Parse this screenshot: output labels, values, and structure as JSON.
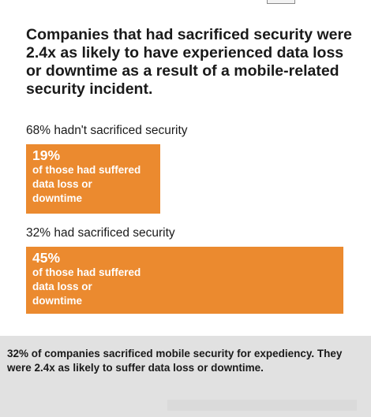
{
  "headline": "Companies that had sacrificed security were 2.4x as likely to have experienced data loss or downtime as a result of a mobile-related security incident.",
  "chart_data": {
    "type": "bar",
    "orientation": "horizontal",
    "title": "Companies that had sacrificed security were 2.4x as likely to have experienced data loss or downtime as a result of a mobile-related security incident.",
    "categories": [
      "68% hadn't sacrificed security",
      "32% had sacrificed security"
    ],
    "values": [
      19,
      45
    ],
    "unit": "%",
    "value_labels": [
      "19%",
      "45%"
    ],
    "value_description": "of those had suffered data loss or downtime",
    "xlim": [
      0,
      45
    ],
    "grid": false,
    "legend": "none",
    "bar_color": "#eb8a2f",
    "groups": [
      {
        "label": "68% hadn't sacrificed security",
        "value": 19,
        "value_label": "19%",
        "description": "of those had suffered data loss or downtime"
      },
      {
        "label": "32% had sacrificed security",
        "value": 45,
        "value_label": "45%",
        "description": "of those had suffered data loss or downtime"
      }
    ]
  },
  "footer": {
    "text": "32% of companies sacrificed mobile security for expediency. They were 2.4x as likely to suffer data loss or downtime."
  },
  "colors": {
    "bar": "#eb8a2f",
    "footer_background": "#e1e1e1",
    "text": "#1a1a1a"
  }
}
